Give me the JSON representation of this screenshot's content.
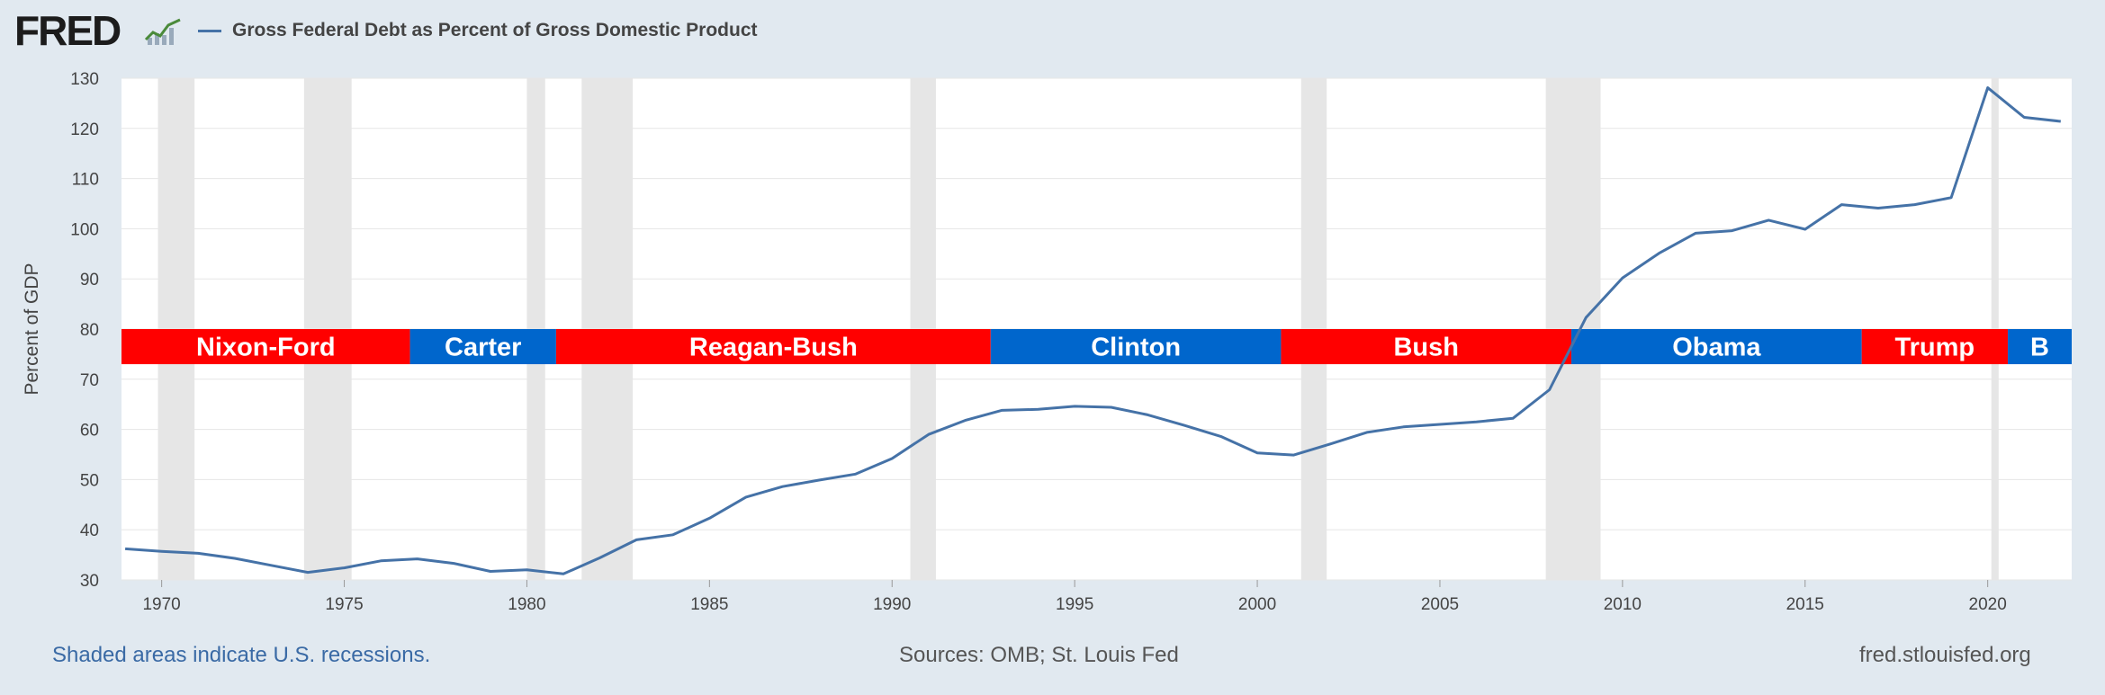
{
  "header": {
    "logo_text": "FRED",
    "logo_mark": "fred-chart-mark-icon",
    "series_title": "Gross Federal Debt as Percent of Gross Domestic Product"
  },
  "footer": {
    "recession_note": "Shaded areas indicate U.S. recessions.",
    "sources": "Sources: OMB; St. Louis Fed",
    "site": "fred.stlouisfed.org"
  },
  "colors": {
    "line": "#4572a7",
    "recession": "#e6e6e6",
    "republican": "#ff0000",
    "democrat": "#0066cc",
    "background": "#e1e9f0",
    "plot_background": "#ffffff"
  },
  "chart_data": {
    "type": "line",
    "title": "Gross Federal Debt as Percent of Gross Domestic Product",
    "ylabel": "Percent of GDP",
    "xlabel": "",
    "xlim": [
      1968.9,
      2022.3
    ],
    "ylim": [
      30,
      130
    ],
    "y_ticks": [
      "30",
      "40",
      "50",
      "60",
      "70",
      "80",
      "90",
      "100",
      "110",
      "120",
      "130"
    ],
    "x_ticks": [
      "1970",
      "1975",
      "1980",
      "1985",
      "1990",
      "1995",
      "2000",
      "2005",
      "2010",
      "2015",
      "2020"
    ],
    "grid": "horizontal",
    "legend_position": "top-left",
    "series": [
      {
        "name": "Gross Federal Debt as Percent of Gross Domestic Product",
        "x": [
          1969,
          1970,
          1971,
          1972,
          1973,
          1974,
          1975,
          1976,
          1977,
          1978,
          1979,
          1980,
          1981,
          1982,
          1983,
          1984,
          1985,
          1986,
          1987,
          1988,
          1989,
          1990,
          1991,
          1992,
          1993,
          1994,
          1995,
          1996,
          1997,
          1998,
          1999,
          2000,
          2001,
          2002,
          2003,
          2004,
          2005,
          2006,
          2007,
          2008,
          2009,
          2010,
          2011,
          2012,
          2013,
          2014,
          2015,
          2016,
          2017,
          2018,
          2019,
          2020,
          2021,
          2022
        ],
        "values": [
          36.2,
          35.7,
          35.3,
          34.3,
          32.9,
          31.5,
          32.4,
          33.8,
          34.2,
          33.3,
          31.7,
          32.0,
          31.2,
          34.4,
          38.0,
          39.0,
          42.3,
          46.5,
          48.6,
          49.9,
          51.1,
          54.2,
          59.0,
          61.8,
          63.8,
          64.0,
          64.6,
          64.4,
          62.9,
          60.8,
          58.6,
          55.3,
          54.9,
          57.1,
          59.4,
          60.5,
          61.0,
          61.5,
          62.2,
          67.9,
          82.3,
          90.2,
          95.1,
          99.1,
          99.6,
          101.7,
          99.9,
          104.8,
          104.1,
          104.8,
          106.2,
          128.1,
          122.2,
          121.4
        ]
      }
    ],
    "recessions": [
      [
        1969.9,
        1970.9
      ],
      [
        1973.9,
        1975.2
      ],
      [
        1980.0,
        1980.5
      ],
      [
        1981.5,
        1982.9
      ],
      [
        1990.5,
        1991.2
      ],
      [
        2001.2,
        2001.9
      ],
      [
        2007.9,
        2009.4
      ],
      [
        2020.1,
        2020.3
      ]
    ],
    "annotations": [
      {
        "label": "Nixon-Ford",
        "start": 1968.9,
        "end": 1976.8,
        "party": "republican"
      },
      {
        "label": "Carter",
        "start": 1976.8,
        "end": 1980.8,
        "party": "democrat"
      },
      {
        "label": "Reagan-Bush",
        "start": 1980.8,
        "end": 1992.7,
        "party": "republican"
      },
      {
        "label": "Clinton",
        "start": 1992.7,
        "end": 2000.65,
        "party": "democrat"
      },
      {
        "label": "Bush",
        "start": 2000.65,
        "end": 2008.6,
        "party": "republican"
      },
      {
        "label": "Obama",
        "start": 2008.6,
        "end": 2016.55,
        "party": "democrat"
      },
      {
        "label": "Trump",
        "start": 2016.55,
        "end": 2020.55,
        "party": "republican"
      },
      {
        "label": "B",
        "start": 2020.55,
        "end": 2022.3,
        "party": "democrat"
      }
    ],
    "annotation_band_y": [
      73,
      80
    ]
  }
}
